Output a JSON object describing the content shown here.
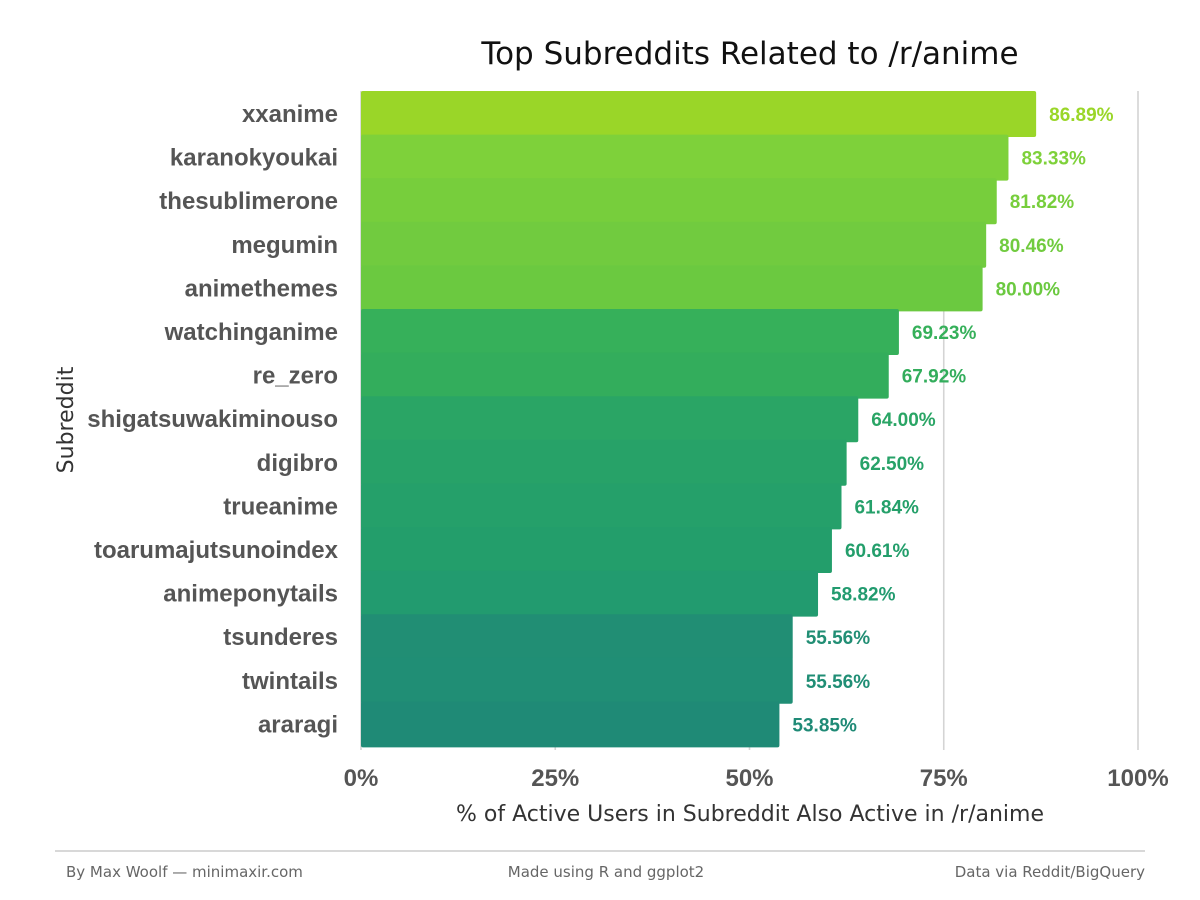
{
  "chart_data": {
    "type": "bar",
    "orientation": "horizontal",
    "title": "Top Subreddits Related to /r/anime",
    "xlabel": "% of Active Users in Subreddit Also Active in /r/anime",
    "ylabel": "Subreddit",
    "xlim": [
      0,
      100
    ],
    "x_ticks": [
      "0%",
      "25%",
      "50%",
      "75%",
      "100%"
    ],
    "x_tick_values": [
      0,
      25,
      50,
      75,
      100
    ],
    "grid": "vertical major gridlines",
    "categories": [
      "xxanime",
      "karanokyoukai",
      "thesublimerone",
      "megumin",
      "animethemes",
      "watchinganime",
      "re_zero",
      "shigatsuwakiminouso",
      "digibro",
      "trueanime",
      "toarumajutsunoindex",
      "animeponytails",
      "tsunderes",
      "twintails",
      "araragi"
    ],
    "values": [
      86.89,
      83.33,
      81.82,
      80.46,
      80.0,
      69.23,
      67.92,
      64.0,
      62.5,
      61.84,
      60.61,
      58.82,
      55.56,
      55.56,
      53.85
    ],
    "value_labels": [
      "86.89%",
      "83.33%",
      "81.82%",
      "80.46%",
      "80.00%",
      "69.23%",
      "67.92%",
      "64.00%",
      "62.50%",
      "61.84%",
      "60.61%",
      "58.82%",
      "55.56%",
      "55.56%",
      "53.85%"
    ],
    "colors": [
      "#9ad628",
      "#7ed13a",
      "#77ce3c",
      "#71cb3f",
      "#6bc940",
      "#36b05a",
      "#33ad5c",
      "#2aa565",
      "#27a268",
      "#25a06a",
      "#239e6b",
      "#229b6f",
      "#218e74",
      "#208e75",
      "#1f8a76"
    ]
  },
  "footer": {
    "left": "By Max Woolf — minimaxir.com",
    "center": "Made using R and ggplot2",
    "right": "Data via Reddit/BigQuery"
  }
}
